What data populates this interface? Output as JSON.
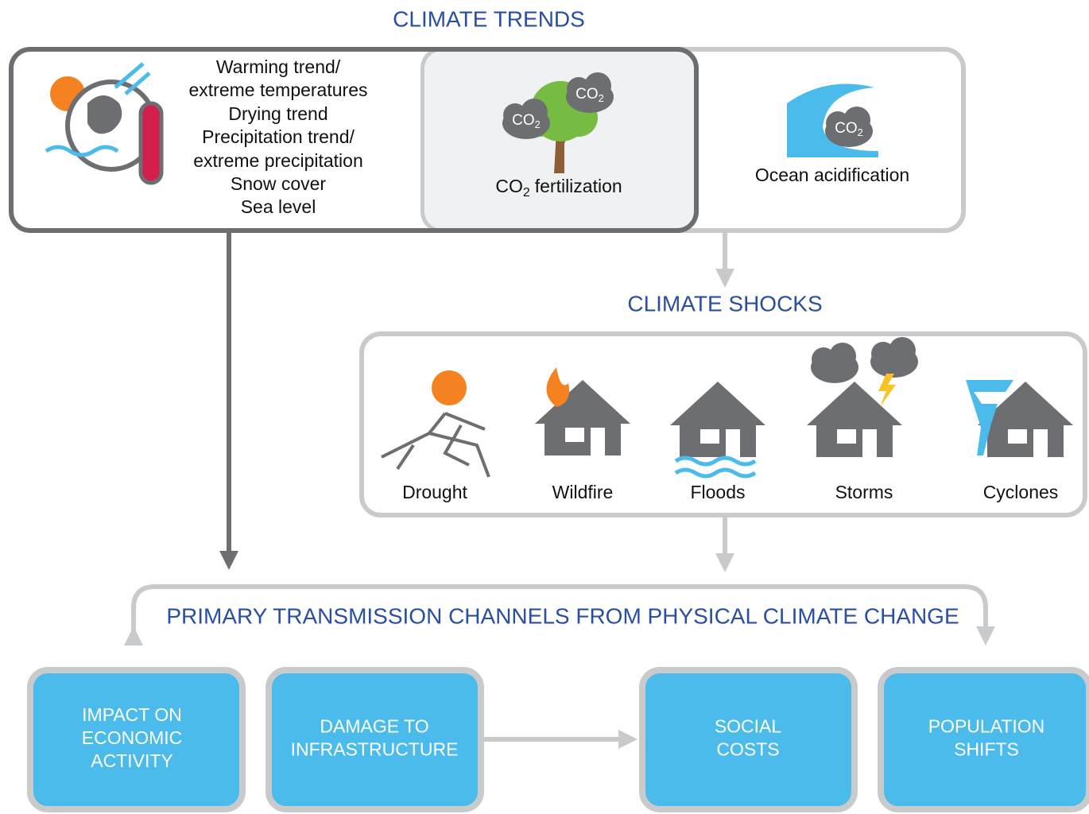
{
  "trends": {
    "title": "CLIMATE TRENDS",
    "lines": [
      "Warming trend/",
      "extreme temperatures",
      "Drying trend",
      "Precipitation trend/",
      "extreme precipitation",
      "Snow cover",
      "Sea level"
    ],
    "co2_icon": {
      "main": "CO",
      "sub": "2"
    },
    "co2_fertilization": {
      "main": "CO",
      "sub": "2",
      "rest": "fertilization"
    },
    "ocean": "Ocean acidification"
  },
  "shocks": {
    "title": "CLIMATE SHOCKS",
    "items": [
      "Drought",
      "Wildfire",
      "Floods",
      "Storms",
      "Cyclones"
    ]
  },
  "channels": {
    "title": "PRIMARY TRANSMISSION CHANNELS FROM PHYSICAL CLIMATE CHANGE",
    "boxes": [
      [
        "IMPACT ON",
        "ECONOMIC",
        "ACTIVITY"
      ],
      [
        "DAMAGE TO",
        "INFRASTRUCTURE"
      ],
      [
        "SOCIAL",
        "COSTS"
      ],
      [
        "POPULATION",
        "SHIFTS"
      ]
    ]
  }
}
